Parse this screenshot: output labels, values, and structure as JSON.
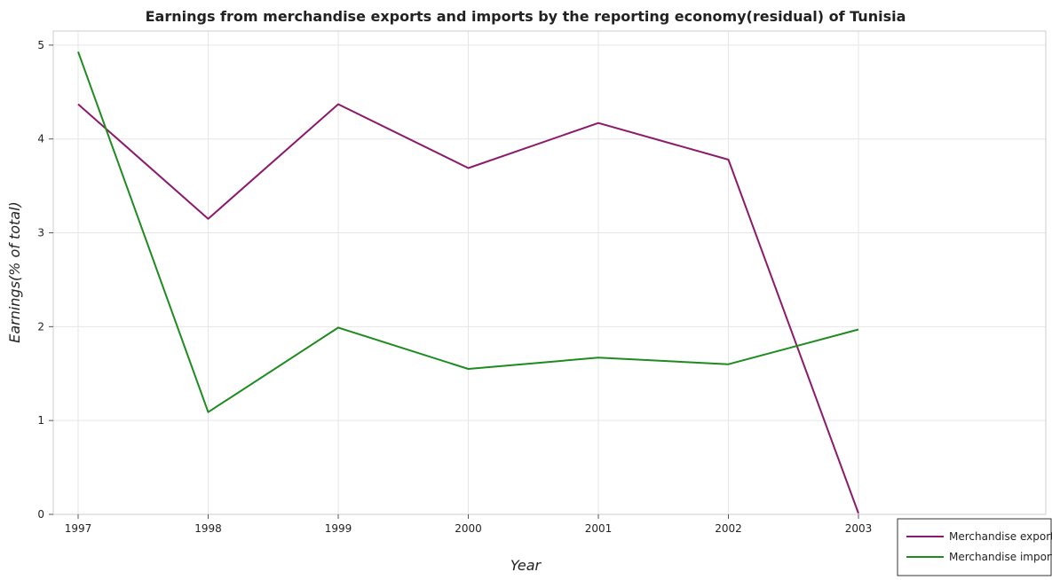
{
  "chart_data": {
    "type": "line",
    "title": "Earnings from merchandise exports and imports by the reporting economy(residual) of Tunisia",
    "xlabel": "Year",
    "ylabel": "Earnings(% of total)",
    "x": [
      "1997",
      "1998",
      "1999",
      "2000",
      "2001",
      "2002",
      "2003"
    ],
    "ylim": [
      0,
      5.15
    ],
    "yticks": [
      "0",
      "1",
      "2",
      "3",
      "4",
      "5"
    ],
    "grid": true,
    "legend_position": "bottom-right",
    "series": [
      {
        "name": "Merchandise exports",
        "color": "#8b1a6b",
        "values": [
          4.37,
          3.15,
          4.37,
          3.69,
          4.17,
          3.78,
          0.01
        ]
      },
      {
        "name": "Merchandise imports",
        "color": "#1e8b1e",
        "values": [
          4.93,
          1.09,
          1.99,
          1.55,
          1.67,
          1.6,
          1.97
        ]
      }
    ]
  }
}
